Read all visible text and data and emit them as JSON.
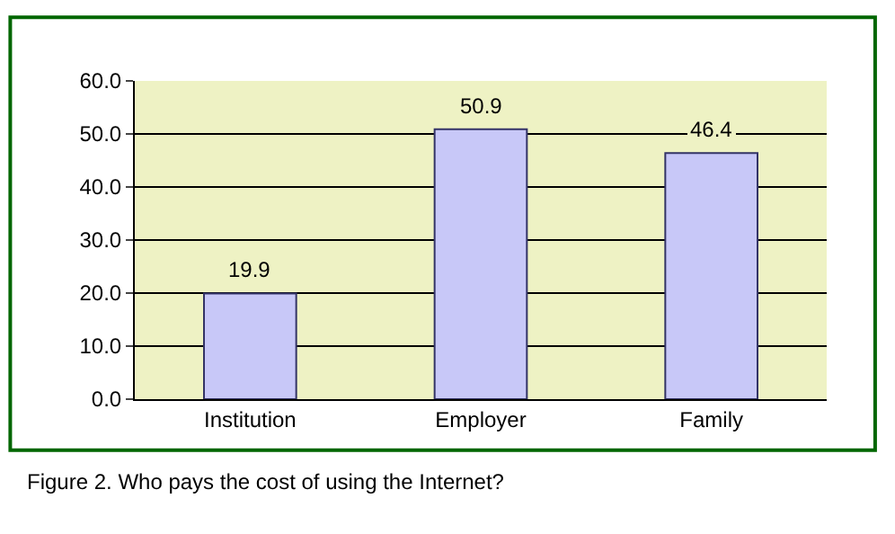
{
  "chart_data": {
    "type": "bar",
    "categories": [
      "Institution",
      "Employer",
      "Family"
    ],
    "values": [
      19.9,
      50.9,
      46.4
    ],
    "color": "#c8c8f8",
    "ylim": [
      0,
      60
    ],
    "yticks": [
      {
        "value": 0,
        "label": "0.0"
      },
      {
        "value": 10,
        "label": "10.0"
      },
      {
        "value": 20,
        "label": "20.0"
      },
      {
        "value": 30,
        "label": "30.0"
      },
      {
        "value": 40,
        "label": "40.0"
      },
      {
        "value": 50,
        "label": "50.0"
      },
      {
        "value": 60,
        "label": "60.0"
      }
    ],
    "grid": "y",
    "data_labels": true,
    "annotations": [
      "Figure 2. Who pays the cost of using the Internet?"
    ]
  }
}
